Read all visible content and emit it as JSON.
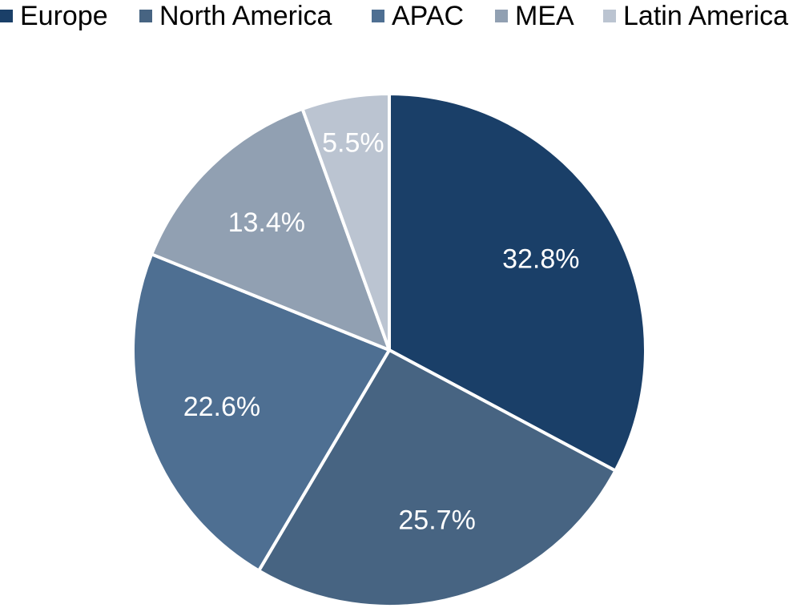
{
  "chart_data": {
    "type": "pie",
    "title": "",
    "legend_position": "top",
    "slices": [
      {
        "name": "Europe",
        "value": 32.8,
        "label": "32.8%",
        "color": "#1a3f68"
      },
      {
        "name": "North America",
        "value": 25.7,
        "label": "25.7%",
        "color": "#476482"
      },
      {
        "name": "APAC",
        "value": 22.6,
        "label": "22.6%",
        "color": "#4e6f92"
      },
      {
        "name": "MEA",
        "value": 13.4,
        "label": "13.4%",
        "color": "#91a0b2"
      },
      {
        "name": "Latin America",
        "value": 5.5,
        "label": "5.5%",
        "color": "#bbc4d1"
      }
    ]
  }
}
